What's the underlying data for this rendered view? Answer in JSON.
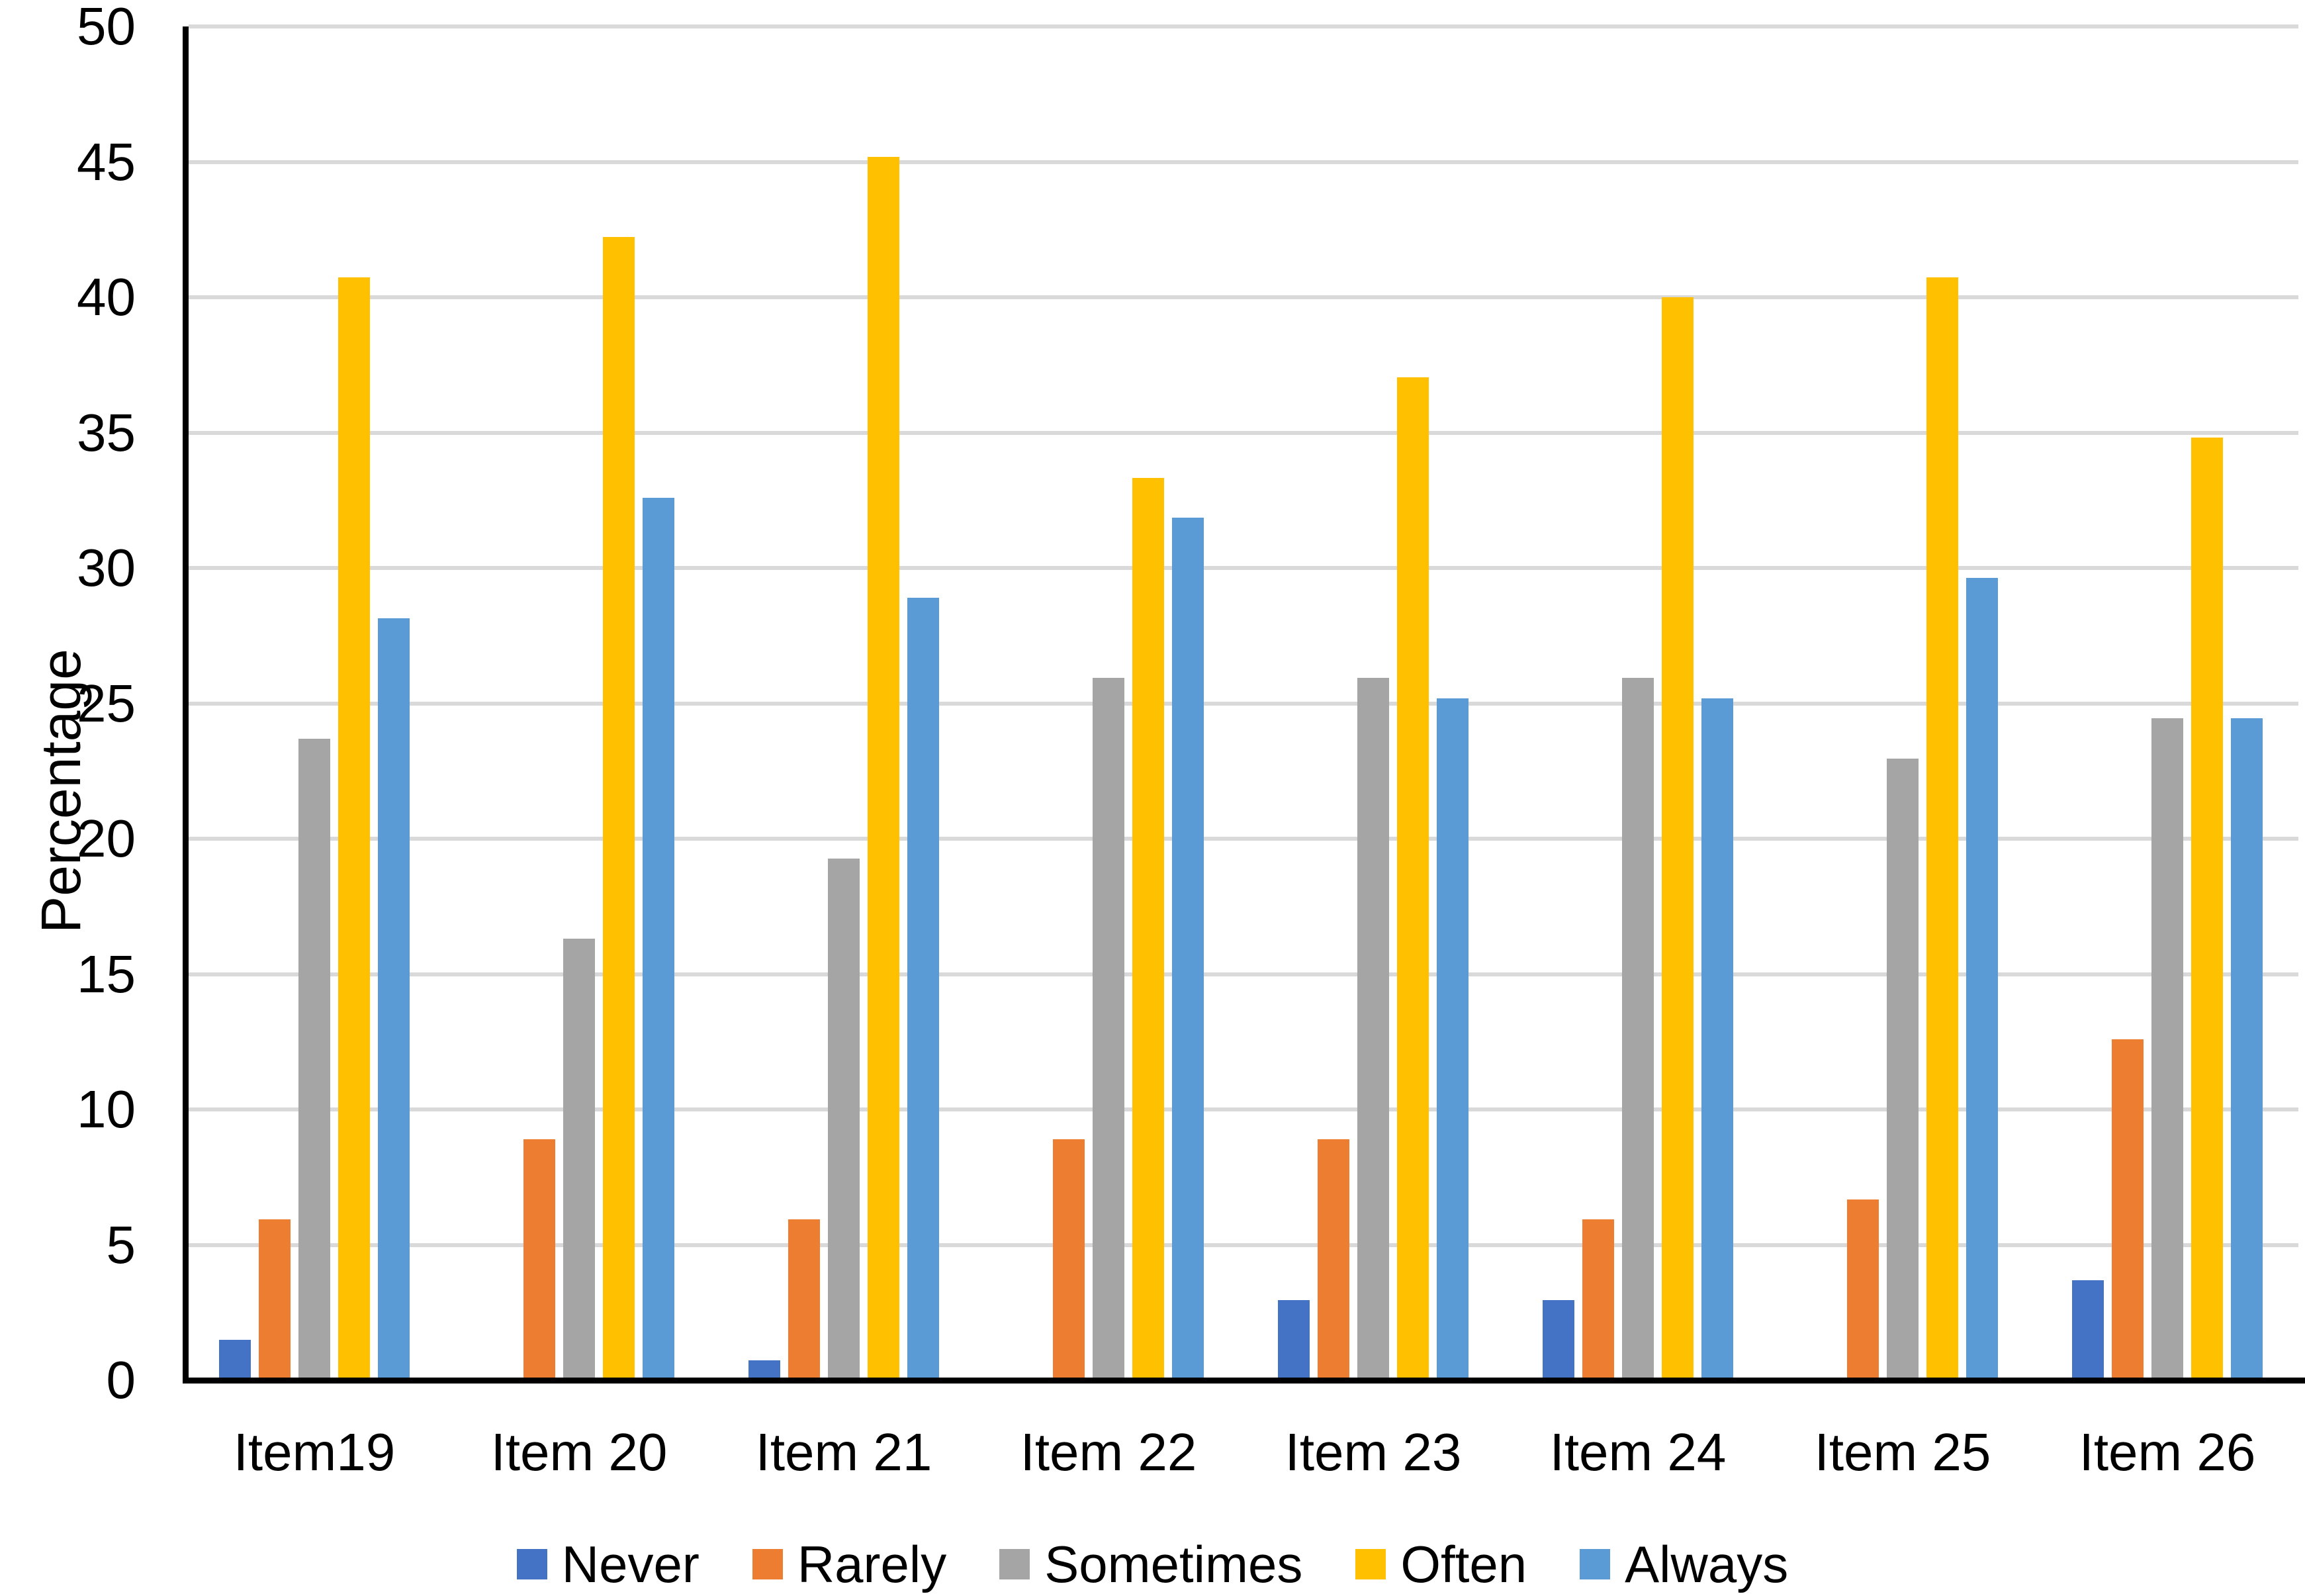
{
  "chart_data": {
    "type": "bar",
    "title": "",
    "xlabel": "",
    "ylabel": "Percentage",
    "ylim": [
      0,
      50
    ],
    "yticks": [
      0,
      5,
      10,
      15,
      20,
      25,
      30,
      35,
      40,
      45,
      50
    ],
    "grid": true,
    "legend_position": "bottom",
    "gridline_color": "#D9D9D9",
    "axis_color": "#000000",
    "categories": [
      "Item19",
      "Item 20",
      "Item 21",
      "Item 22",
      "Item 23",
      "Item 24",
      "Item 25",
      "Item 26"
    ],
    "series": [
      {
        "name": "Never",
        "color": "#4472C4",
        "values": [
          1.48,
          0,
          0.74,
          0,
          2.96,
          2.96,
          0,
          3.7
        ]
      },
      {
        "name": "Rarely",
        "color": "#ED7D31",
        "values": [
          5.93,
          8.89,
          5.93,
          8.89,
          8.89,
          5.93,
          6.67,
          12.59
        ]
      },
      {
        "name": "Sometimes",
        "color": "#A5A5A5",
        "values": [
          23.7,
          16.3,
          19.26,
          25.93,
          25.93,
          25.93,
          22.96,
          24.44
        ]
      },
      {
        "name": "Often",
        "color": "#FFC000",
        "values": [
          40.74,
          42.22,
          45.19,
          33.33,
          37.04,
          40.0,
          40.74,
          34.81
        ]
      },
      {
        "name": "Always",
        "color": "#5B9BD5",
        "values": [
          28.15,
          32.59,
          28.89,
          31.85,
          25.19,
          25.19,
          29.63,
          24.44
        ]
      }
    ]
  }
}
